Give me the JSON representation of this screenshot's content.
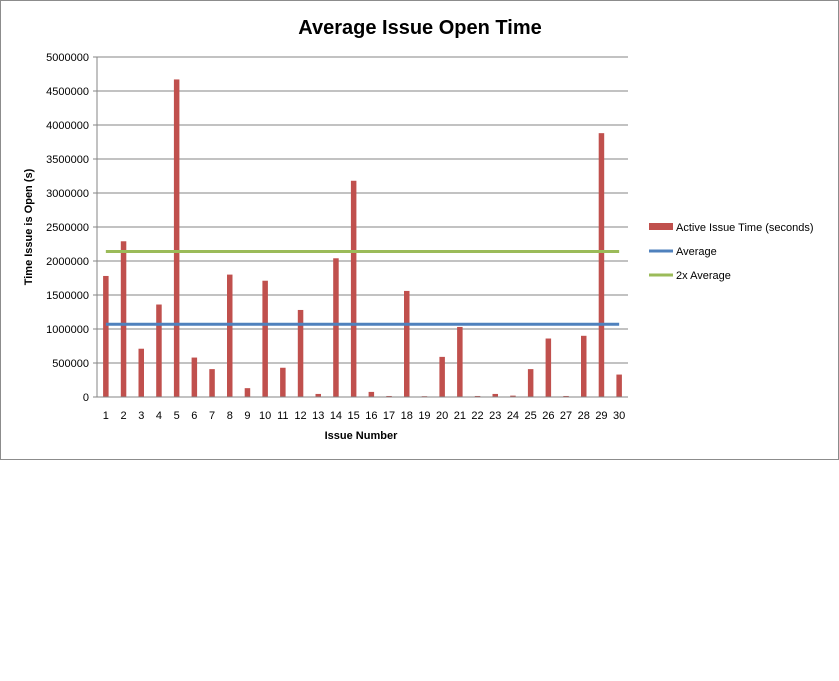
{
  "chart_data": {
    "type": "bar",
    "title": "Average Issue Open Time",
    "xlabel": "Issue Number",
    "ylabel": "Time Issue is Open (s)",
    "ylim": [
      0,
      5000000
    ],
    "yticks": [
      0,
      500000,
      1000000,
      1500000,
      2000000,
      2500000,
      3000000,
      3500000,
      4000000,
      4500000,
      5000000
    ],
    "categories": [
      "1",
      "2",
      "3",
      "4",
      "5",
      "6",
      "7",
      "8",
      "9",
      "10",
      "11",
      "12",
      "13",
      "14",
      "15",
      "16",
      "17",
      "18",
      "19",
      "20",
      "21",
      "22",
      "23",
      "24",
      "25",
      "26",
      "27",
      "28",
      "29",
      "30"
    ],
    "series": [
      {
        "name": "Active Issue Time (seconds)",
        "type": "bar",
        "color": "#c0504d",
        "values": [
          1780000,
          2290000,
          710000,
          1360000,
          4670000,
          580000,
          410000,
          1800000,
          130000,
          1710000,
          430000,
          1280000,
          45000,
          2040000,
          3180000,
          75000,
          15000,
          1560000,
          12000,
          590000,
          1030000,
          15000,
          45000,
          20000,
          410000,
          860000,
          15000,
          900000,
          3880000,
          330000
        ]
      },
      {
        "name": "Average",
        "type": "line",
        "color": "#4f81bd",
        "values": [
          1070000,
          1070000,
          1070000,
          1070000,
          1070000,
          1070000,
          1070000,
          1070000,
          1070000,
          1070000,
          1070000,
          1070000,
          1070000,
          1070000,
          1070000,
          1070000,
          1070000,
          1070000,
          1070000,
          1070000,
          1070000,
          1070000,
          1070000,
          1070000,
          1070000,
          1070000,
          1070000,
          1070000,
          1070000,
          1070000
        ]
      },
      {
        "name": "2x Average",
        "type": "line",
        "color": "#9bbb59",
        "values": [
          2140000,
          2140000,
          2140000,
          2140000,
          2140000,
          2140000,
          2140000,
          2140000,
          2140000,
          2140000,
          2140000,
          2140000,
          2140000,
          2140000,
          2140000,
          2140000,
          2140000,
          2140000,
          2140000,
          2140000,
          2140000,
          2140000,
          2140000,
          2140000,
          2140000,
          2140000,
          2140000,
          2140000,
          2140000,
          2140000
        ]
      }
    ],
    "grid": true,
    "legend_position": "right"
  }
}
